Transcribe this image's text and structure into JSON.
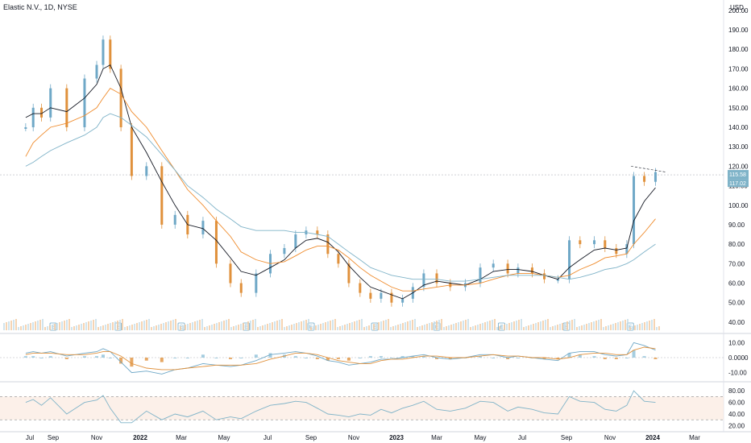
{
  "header": {
    "title": "Elastic N.V., 1D, NYSE",
    "currency": "USD"
  },
  "chart_data": {
    "type": "candlestick",
    "title": "Elastic N.V., 1D, NYSE",
    "price_axis": {
      "ticks": [
        "40.00",
        "50.00",
        "60.00",
        "70.00",
        "80.00",
        "90.00",
        "100.00",
        "110.00",
        "120.00",
        "130.00",
        "140.00",
        "150.00",
        "160.00",
        "170.00",
        "180.00",
        "190.00",
        "200.00"
      ],
      "ylim": [
        35,
        202
      ]
    },
    "time_axis": {
      "ticks": [
        "Jul",
        "Sep",
        "Nov",
        "2022",
        "Mar",
        "May",
        "Jul",
        "Sep",
        "Nov",
        "2023",
        "Mar",
        "May",
        "Jul",
        "Sep",
        "Nov",
        "2024",
        "Mar"
      ],
      "bold": [
        "2022",
        "2023",
        "2024"
      ],
      "tick_dates": [
        "2021-07-01",
        "2021-09-01",
        "2021-11-01",
        "2022-01-01",
        "2022-03-01",
        "2022-05-01",
        "2022-07-01",
        "2022-09-01",
        "2022-11-01",
        "2023-01-01",
        "2023-03-01",
        "2023-05-01",
        "2023-07-01",
        "2023-09-01",
        "2023-11-01",
        "2024-01-01",
        "2024-03-01"
      ]
    },
    "price_series": {
      "dates": [
        "2021-06-20",
        "2021-07-10",
        "2021-08-01",
        "2021-08-25",
        "2021-09-20",
        "2021-10-15",
        "2021-11-01",
        "2021-11-10",
        "2021-11-20",
        "2021-12-05",
        "2021-12-20",
        "2022-01-10",
        "2022-02-01",
        "2022-02-20",
        "2022-03-10",
        "2022-04-01",
        "2022-04-20",
        "2022-05-10",
        "2022-05-25",
        "2022-06-15",
        "2022-07-05",
        "2022-07-25",
        "2022-08-10",
        "2022-08-25",
        "2022-09-10",
        "2022-09-25",
        "2022-10-10",
        "2022-10-25",
        "2022-11-10",
        "2022-11-25",
        "2022-12-10",
        "2022-12-25",
        "2023-01-10",
        "2023-01-25",
        "2023-02-10",
        "2023-03-01",
        "2023-03-20",
        "2023-04-10",
        "2023-05-01",
        "2023-05-20",
        "2023-06-10",
        "2023-06-25",
        "2023-07-15",
        "2023-08-01",
        "2023-08-20",
        "2023-09-05",
        "2023-09-20",
        "2023-10-10",
        "2023-10-25",
        "2023-11-10",
        "2023-11-25",
        "2023-12-05",
        "2023-12-20",
        "2024-01-05"
      ],
      "close": [
        140,
        150,
        145,
        160,
        140,
        165,
        172,
        185,
        170,
        140,
        115,
        120,
        90,
        95,
        85,
        92,
        70,
        60,
        55,
        65,
        75,
        78,
        85,
        87,
        85,
        75,
        70,
        60,
        55,
        52,
        55,
        50,
        52,
        58,
        65,
        60,
        58,
        60,
        68,
        70,
        65,
        68,
        65,
        62,
        62,
        82,
        80,
        82,
        78,
        75,
        80,
        115,
        112,
        117
      ]
    },
    "moving_averages": [
      {
        "color": "#131722",
        "values": [
          145,
          147,
          147,
          150,
          148,
          155,
          162,
          170,
          172,
          160,
          140,
          127,
          112,
          100,
          90,
          88,
          82,
          73,
          66,
          64,
          68,
          72,
          78,
          82,
          83,
          81,
          76,
          69,
          63,
          58,
          56,
          54,
          52,
          55,
          59,
          61,
          60,
          59,
          62,
          66,
          67,
          67,
          66,
          64,
          62,
          68,
          72,
          77,
          78,
          77,
          78,
          92,
          102,
          109
        ]
      },
      {
        "color": "#ef8b2c",
        "values": [
          125,
          132,
          136,
          140,
          142,
          146,
          150,
          155,
          160,
          157,
          148,
          140,
          128,
          118,
          108,
          100,
          92,
          84,
          76,
          72,
          70,
          71,
          74,
          77,
          79,
          79,
          77,
          73,
          68,
          64,
          61,
          58,
          56,
          56,
          57,
          58,
          59,
          59,
          60,
          62,
          64,
          65,
          65,
          64,
          63,
          64,
          67,
          70,
          73,
          74,
          75,
          80,
          86,
          93
        ]
      },
      {
        "color": "#7fb3c8",
        "values": [
          120,
          122,
          125,
          128,
          132,
          136,
          140,
          145,
          147,
          145,
          141,
          135,
          126,
          118,
          110,
          104,
          98,
          93,
          89,
          87,
          87,
          87,
          86,
          86,
          85,
          84,
          80,
          76,
          72,
          68,
          66,
          64,
          63,
          62,
          62,
          62,
          61,
          61,
          62,
          63,
          64,
          64,
          64,
          64,
          63,
          62,
          63,
          65,
          67,
          68,
          70,
          72,
          76,
          80
        ]
      }
    ],
    "last_price": {
      "label": "115.58"
    },
    "current_price_label": "117.02",
    "earnings_markers": [
      "E",
      "E",
      "E",
      "E",
      "E",
      "E",
      "E",
      "E",
      "E",
      "E"
    ],
    "earnings_dates": [
      "2021-09-01",
      "2021-12-01",
      "2022-03-01",
      "2022-06-01",
      "2022-09-01",
      "2022-12-01",
      "2023-03-01",
      "2023-06-01",
      "2023-09-01",
      "2023-11-30"
    ],
    "macd": {
      "ticks": [
        "10.00",
        "0.0000",
        "-10.00"
      ],
      "ylim": [
        -14,
        14
      ],
      "macd_line": [
        3,
        4,
        3,
        4,
        1,
        3,
        4,
        6,
        4,
        -3,
        -10,
        -9,
        -11,
        -8,
        -7,
        -4,
        -5,
        -6,
        -5,
        -2,
        2,
        3,
        4,
        3,
        1,
        -2,
        -3,
        -5,
        -4,
        -3,
        -1,
        -1,
        0,
        1,
        2,
        0,
        -1,
        0,
        2,
        2,
        0,
        1,
        0,
        -1,
        -2,
        3,
        4,
        4,
        2,
        1,
        2,
        10,
        8,
        5
      ],
      "signal_line": [
        2,
        3,
        3,
        3,
        2,
        2,
        3,
        4,
        4,
        1,
        -4,
        -7,
        -8,
        -8,
        -7,
        -6,
        -5,
        -5,
        -5,
        -4,
        -1,
        1,
        3,
        3,
        2,
        0,
        -2,
        -3,
        -4,
        -4,
        -2,
        -1,
        -1,
        0,
        1,
        1,
        0,
        0,
        1,
        2,
        1,
        1,
        0,
        0,
        -1,
        0,
        2,
        3,
        3,
        2,
        2,
        5,
        7,
        6
      ]
    },
    "rsi": {
      "ticks": [
        "80.00",
        "60.00",
        "40.00",
        "20.00"
      ],
      "ylim": [
        15,
        90
      ],
      "band": [
        30,
        70
      ],
      "values": [
        60,
        65,
        55,
        68,
        40,
        60,
        64,
        72,
        50,
        25,
        25,
        45,
        30,
        40,
        35,
        45,
        30,
        35,
        32,
        45,
        55,
        58,
        62,
        60,
        50,
        40,
        38,
        35,
        40,
        38,
        48,
        42,
        50,
        55,
        62,
        48,
        45,
        50,
        62,
        60,
        45,
        52,
        48,
        42,
        40,
        70,
        62,
        60,
        48,
        45,
        55,
        80,
        62,
        60
      ]
    }
  }
}
